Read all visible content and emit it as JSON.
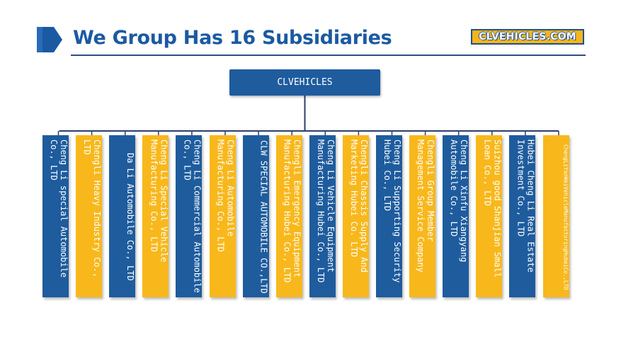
{
  "header": {
    "title": "We Group Has 16 Subsidiaries",
    "brand": "CLVEHICLES.COM",
    "accent_color": "#1b5aa2",
    "brand_color": "#f6b519"
  },
  "org": {
    "root_label": "CLVEHICLES",
    "subsidiaries": [
      {
        "name": "Cheng Li special Automobile Co., LTD",
        "color": "blue"
      },
      {
        "name": "Chengli Heavy Industry Co., LTD",
        "color": "yellow"
      },
      {
        "name": "Da Li Automobile Co., LTD",
        "color": "blue"
      },
      {
        "name": "Cheng Li Special Vehicle Manufacturing Co., LTD",
        "color": "yellow"
      },
      {
        "name": "Cheng Li Commercial Automobile Co., LTD",
        "color": "blue"
      },
      {
        "name": "Cheng Li Automobile Manufacturing Co., LTD",
        "color": "yellow"
      },
      {
        "name": "CLW SPECIAL AUTOMOBILE CO.,LTD",
        "color": "blue"
      },
      {
        "name": "Chengli Emergency Equipment Manufacturing Hubei Co., LTD",
        "color": "yellow"
      },
      {
        "name": "Cheng Li Vehicle Equipment Manufacturing Hubei Co., LTD",
        "color": "blue"
      },
      {
        "name": "Chengli Chassis Supply And Marketing Hubei Co. LTD",
        "color": "yellow"
      },
      {
        "name": "Cheng Li Supporting Security Hubei Co., LTD",
        "color": "blue"
      },
      {
        "name": "Chengli Group Member Management Service Company",
        "color": "yellow"
      },
      {
        "name": "Cheng Li Xinfu Xiangyang Automobile Co., LTD",
        "color": "blue"
      },
      {
        "name": "Suizhou good Shanjian Small Loan Co., LTD",
        "color": "yellow"
      },
      {
        "name": "Hubei Cheng Li Real Estate Investment Co., LTD",
        "color": "blue"
      },
      {
        "name": "ChengLiYanWeiVehicleManufacturingHubeiCo.,LTD",
        "color": "yellow",
        "small": true
      }
    ]
  }
}
